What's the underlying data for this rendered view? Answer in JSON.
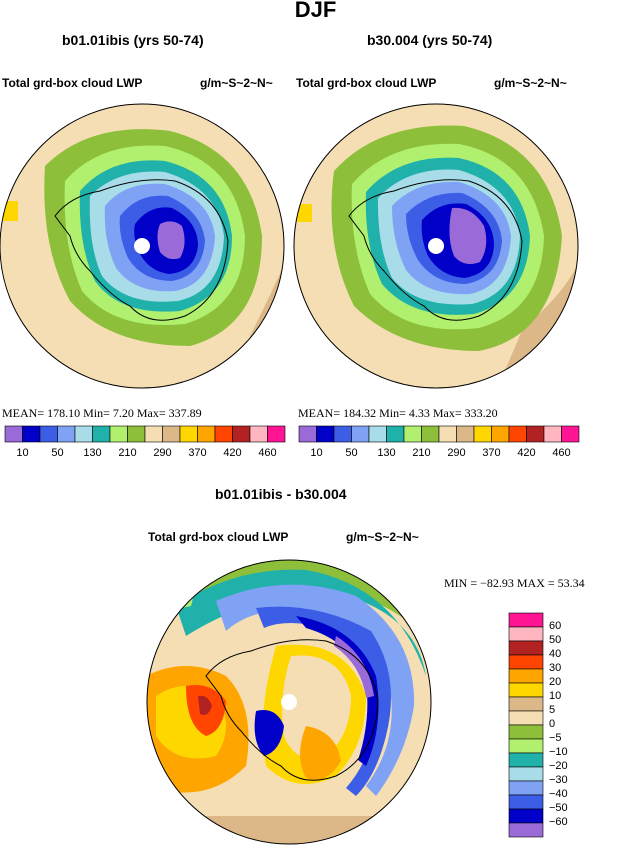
{
  "page": {
    "title": "DJF"
  },
  "panels": {
    "left": {
      "case": "b01.01ibis (yrs 50-74)",
      "field": "Total grd-box cloud LWP",
      "units": "g/m~S~2~N~",
      "stats": "MEAN= 178.10  Min=    7.20  Max= 337.89"
    },
    "right": {
      "case": "b30.004 (yrs 50-74)",
      "field": "Total grd-box cloud LWP",
      "units": "g/m~S~2~N~",
      "stats": "MEAN= 184.32  Min=    4.33  Max= 333.20"
    },
    "diff": {
      "case": "b01.01ibis - b30.004",
      "field": "Total grd-box cloud LWP",
      "units": "g/m~S~2~N~",
      "stats": "MIN = −82.93  MAX =  53.34"
    }
  },
  "colorbar_main": {
    "labels": [
      "10",
      "50",
      "130",
      "210",
      "290",
      "370",
      "420",
      "460"
    ],
    "colors": [
      "#9a6ad8",
      "#0000c8",
      "#3c5ee6",
      "#7fa2f5",
      "#a8dce8",
      "#20b2aa",
      "#b0f06e",
      "#8dbf3a",
      "#f5deb3",
      "#dcb888",
      "#ffd700",
      "#ffa500",
      "#ff4500",
      "#b22222",
      "#ffb6c1",
      "#ff1493"
    ]
  },
  "colorbar_diff": {
    "labels": [
      "60",
      "50",
      "40",
      "30",
      "20",
      "10",
      "5",
      "0",
      "−5",
      "−10",
      "−20",
      "−30",
      "−40",
      "−50",
      "−60"
    ],
    "colors": [
      "#ff1493",
      "#ffb6c1",
      "#b22222",
      "#ff4500",
      "#ffa500",
      "#ffd700",
      "#dcb888",
      "#f5deb3",
      "#8dbf3a",
      "#b0f06e",
      "#20b2aa",
      "#a8dce8",
      "#7fa2f5",
      "#3c5ee6",
      "#0000c8",
      "#9a6ad8"
    ]
  }
}
